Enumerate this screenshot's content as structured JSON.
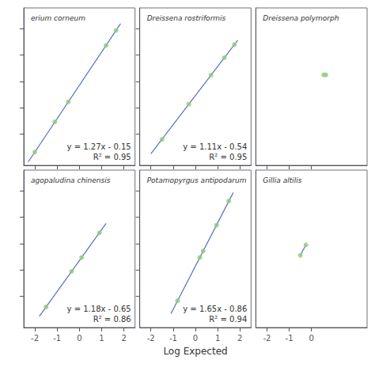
{
  "chart_data": [
    {
      "type": "scatter",
      "title": "erium corneum",
      "annotations": [
        "y = 1.27x - 0.15",
        "R² = 0.95"
      ],
      "series": [
        {
          "type": "line",
          "x": [
            -2.3,
            1.85
          ],
          "values": [
            -3.071,
            2.1995
          ]
        },
        {
          "type": "scatter",
          "x": [
            -2.0,
            -1.1,
            -0.5,
            1.2,
            1.65
          ],
          "values": [
            -2.69,
            -1.54,
            -0.78,
            1.37,
            1.94
          ]
        }
      ],
      "xlim": [
        -2.5,
        2.5
      ],
      "ylim": [
        -3.2,
        2.8
      ],
      "xticks": [
        -2,
        -1,
        0,
        1,
        2
      ],
      "yticks": [
        -2,
        -1,
        0,
        1,
        2
      ],
      "tick_labels": false,
      "grid": false
    },
    {
      "type": "scatter",
      "title": "Dreissena rostriformis",
      "annotations": [
        "y = 1.11x - 0.54",
        "R² = 0.95"
      ],
      "series": [
        {
          "type": "line",
          "x": [
            -2.0,
            1.9
          ],
          "values": [
            -2.76,
            1.569
          ]
        },
        {
          "type": "scatter",
          "x": [
            -1.5,
            -0.3,
            0.7,
            1.3,
            1.75
          ],
          "values": [
            -2.21,
            -0.87,
            0.24,
            0.9,
            1.4
          ]
        }
      ],
      "xlim": [
        -2.5,
        2.5
      ],
      "ylim": [
        -3.2,
        2.8
      ],
      "xticks": [
        -2,
        -1,
        0,
        1,
        2
      ],
      "yticks": [
        -2,
        -1,
        0,
        1,
        2
      ],
      "tick_labels": false,
      "grid": false
    },
    {
      "type": "scatter",
      "title": "Dreissena polymorph",
      "series": [
        {
          "type": "scatter",
          "x": [
            0.55,
            0.65
          ],
          "values": [
            0.25,
            0.25
          ]
        }
      ],
      "xlim": [
        -2.5,
        2.5
      ],
      "ylim": [
        -3.2,
        2.8
      ],
      "xticks": [
        -2,
        -1,
        0
      ],
      "yticks": [],
      "tick_labels": false,
      "grid": false
    },
    {
      "type": "scatter",
      "title": "agopaludina chinensis",
      "annotations": [
        "y = 1.18x - 0.65",
        "R² = 0.86"
      ],
      "series": [
        {
          "type": "line",
          "x": [
            -1.8,
            1.2
          ],
          "values": [
            -2.774,
            0.766
          ]
        },
        {
          "type": "scatter",
          "x": [
            -1.5,
            -0.35,
            0.1,
            0.9
          ],
          "values": [
            -2.42,
            -1.06,
            -0.53,
            0.41
          ]
        }
      ],
      "xlim": [
        -2.5,
        2.5
      ],
      "ylim": [
        -3.2,
        2.8
      ],
      "xticks": [
        -2,
        -1,
        0,
        1,
        2
      ],
      "yticks": [
        -2,
        -1,
        0,
        1,
        2
      ],
      "tick_labels": "x",
      "grid": false
    },
    {
      "type": "scatter",
      "title": "Potamopyrgus antipodarum",
      "xlabel": "Log Expected",
      "annotations": [
        "y = 1.65x - 0.86",
        "R² = 0.94"
      ],
      "series": [
        {
          "type": "line",
          "x": [
            -1.1,
            1.7
          ],
          "values": [
            -2.675,
            1.945
          ]
        },
        {
          "type": "scatter",
          "x": [
            -0.8,
            0.2,
            0.35,
            0.95,
            1.5
          ],
          "values": [
            -2.18,
            -0.53,
            -0.28,
            0.7,
            1.62
          ]
        }
      ],
      "xlim": [
        -2.5,
        2.5
      ],
      "ylim": [
        -3.2,
        2.8
      ],
      "xticks": [
        -2,
        -1,
        0,
        1,
        2
      ],
      "yticks": [
        -2,
        -1,
        0,
        1,
        2
      ],
      "tick_labels": "x",
      "grid": false
    },
    {
      "type": "scatter",
      "title": "Gillia altilis",
      "series": [
        {
          "type": "line",
          "x": [
            -0.5,
            -0.25
          ],
          "values": [
            -0.45,
            -0.05
          ]
        },
        {
          "type": "scatter",
          "x": [
            -0.5,
            -0.25
          ],
          "values": [
            -0.45,
            -0.05
          ]
        }
      ],
      "xlim": [
        -2.5,
        2.5
      ],
      "ylim": [
        -3.2,
        2.8
      ],
      "xticks": [
        -2,
        -1,
        0
      ],
      "yticks": [],
      "tick_labels": "x",
      "grid": false
    }
  ]
}
